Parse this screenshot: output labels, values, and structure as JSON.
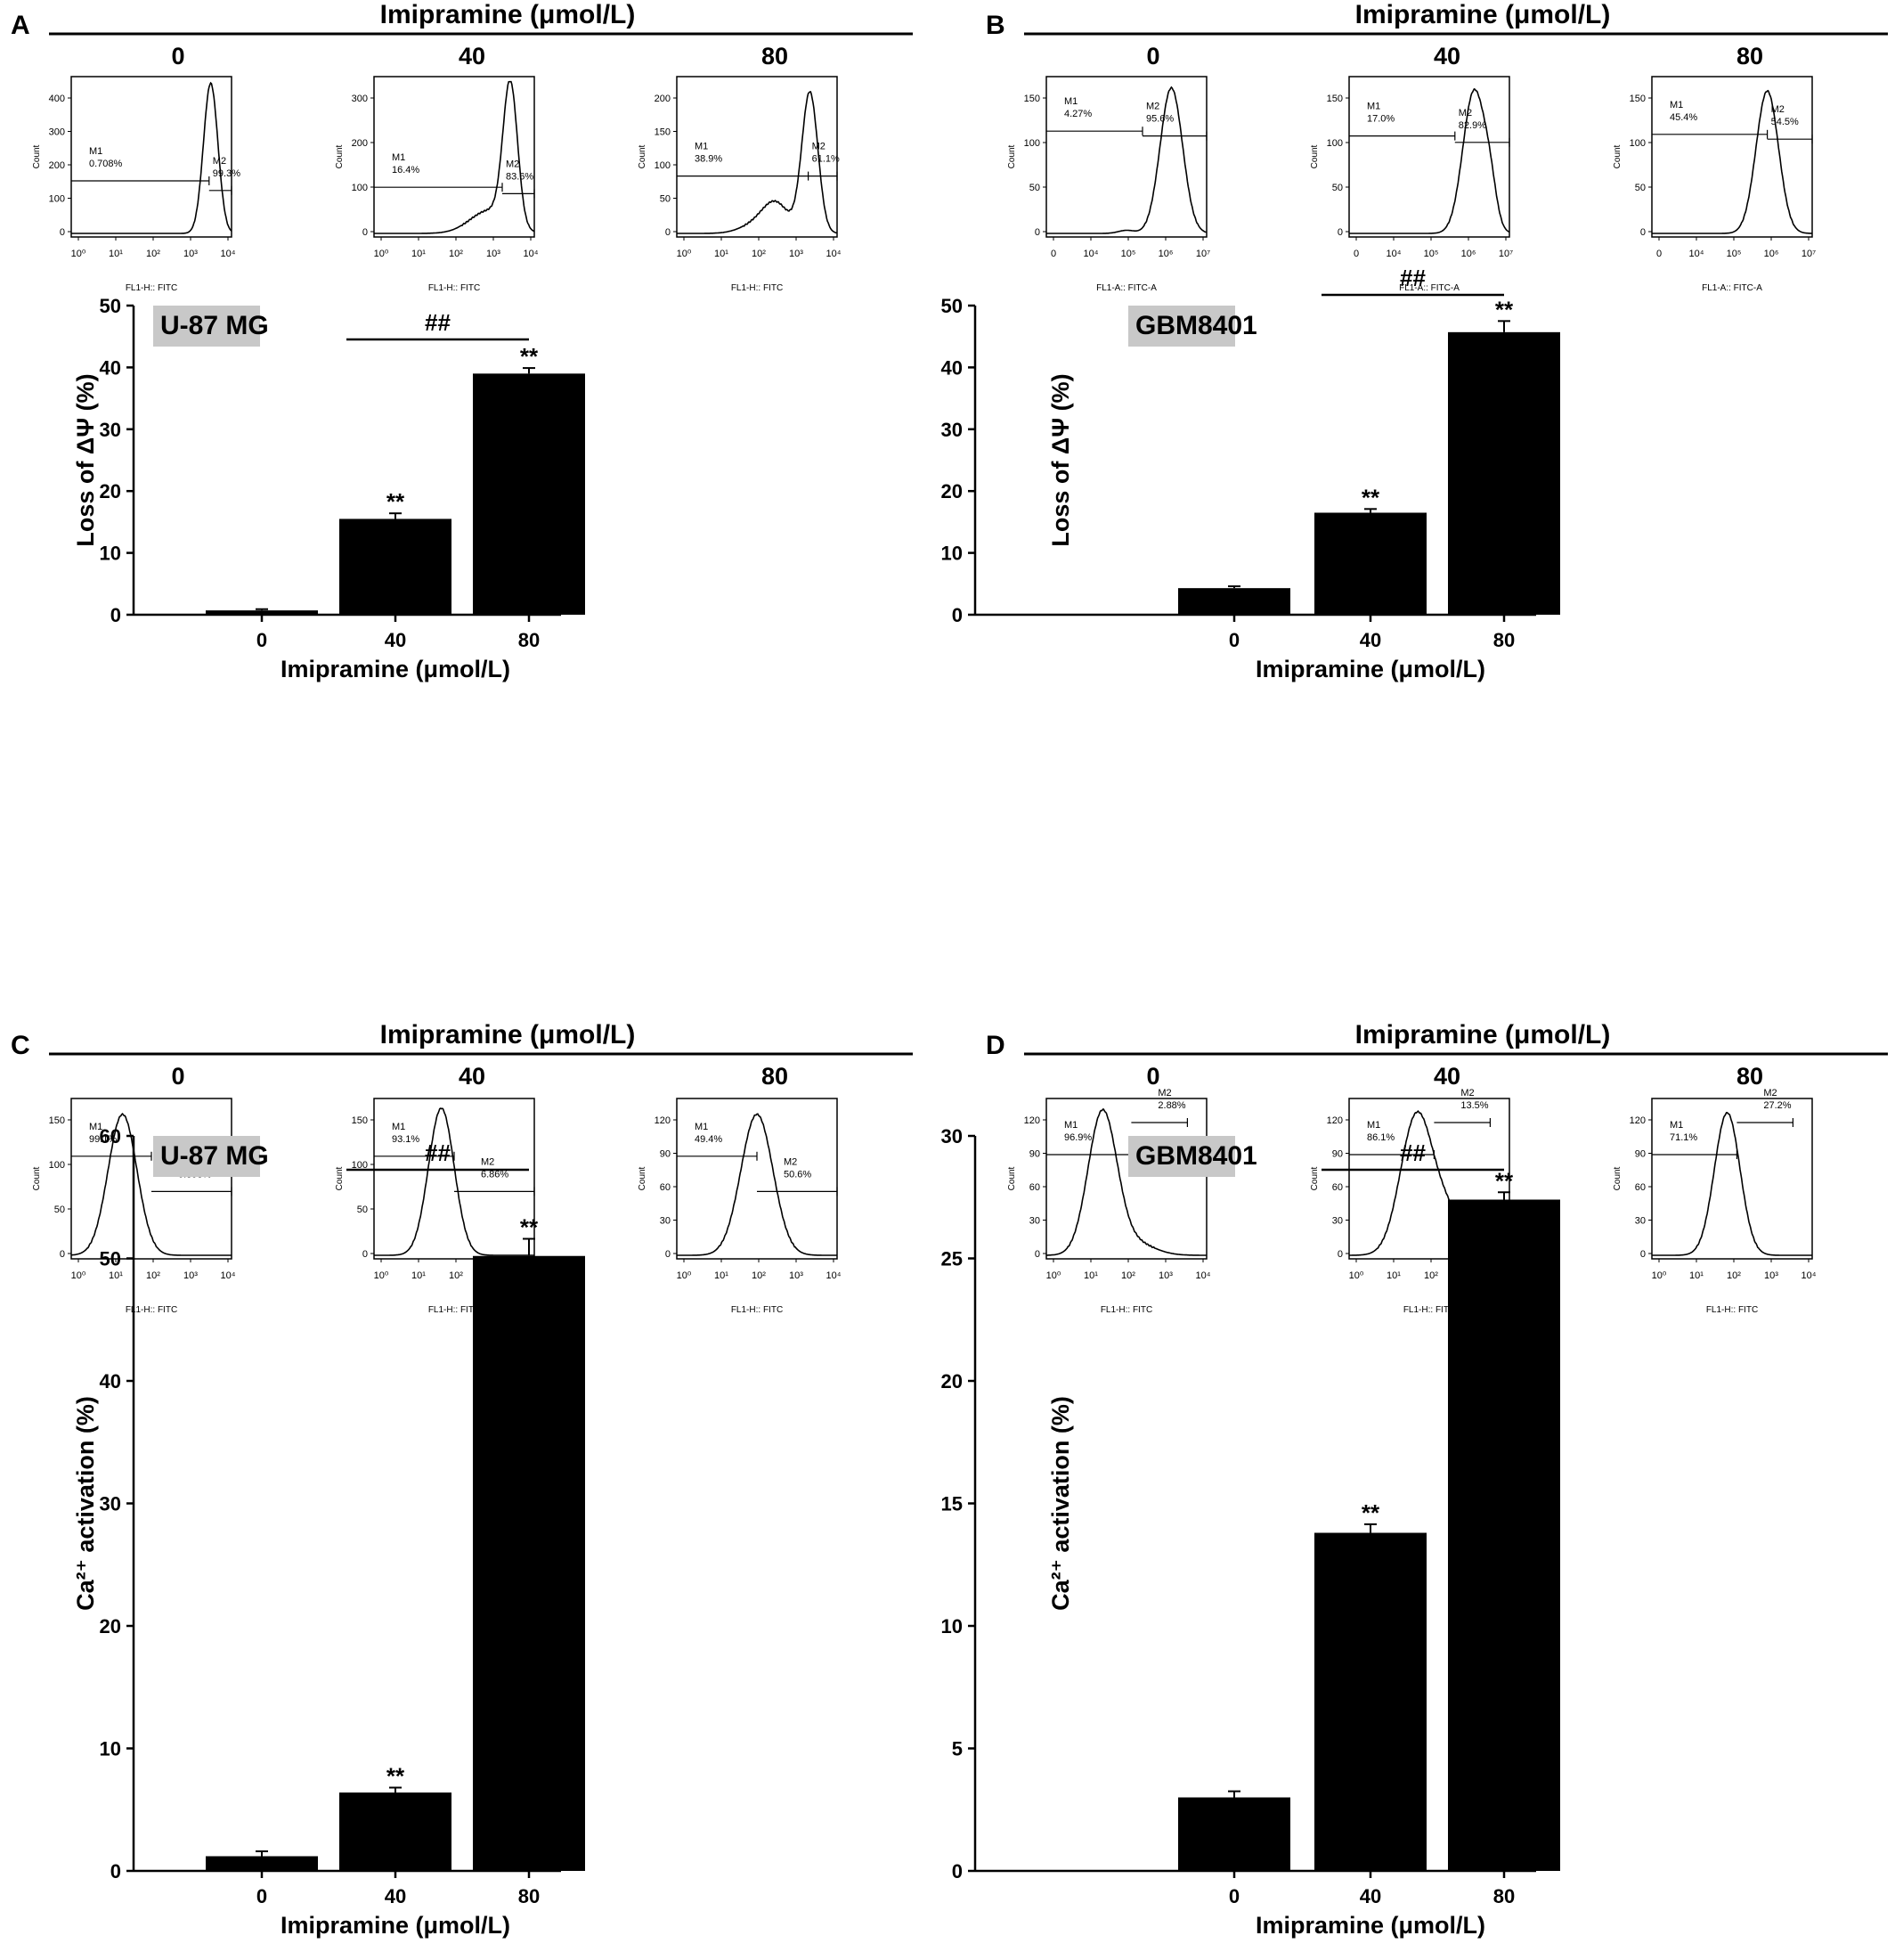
{
  "panels": [
    {
      "letter": "A",
      "header": "Imipramine (μmol/L)",
      "doses": [
        "0",
        "40",
        "80"
      ],
      "flow": {
        "yticks": [
          [
            "0",
            "100",
            "200",
            "300",
            "400"
          ],
          [
            "0",
            "100",
            "200",
            "300"
          ],
          [
            "0",
            "50",
            "100",
            "150",
            "200"
          ]
        ],
        "ylabel": "Count",
        "xlabel": "FL1-H:: FITC",
        "xscale": "log",
        "xticks": [
          "10⁰",
          "10¹",
          "10²",
          "10³",
          "10⁴"
        ],
        "gates": [
          [
            {
              "name": "M1",
              "value": "0.708%"
            },
            {
              "name": "M2",
              "value": "99.3%"
            }
          ],
          [
            {
              "name": "M1",
              "value": "16.4%"
            },
            {
              "name": "M2",
              "value": "83.6%"
            }
          ],
          [
            {
              "name": "M1",
              "value": "38.9%"
            },
            {
              "name": "M2",
              "value": "61.1%"
            }
          ]
        ]
      },
      "cell_line": "U-87 MG",
      "bar": {
        "ylabel": "Loss of ΔΨ (%)",
        "xlabel": "Imipramine (μmol/L)",
        "sig_between": "##",
        "sig_bar": [
          "",
          "**",
          "**"
        ]
      }
    },
    {
      "letter": "B",
      "header": "Imipramine (μmol/L)",
      "doses": [
        "0",
        "40",
        "80"
      ],
      "flow": {
        "yticks": [
          [
            "0",
            "50",
            "100",
            "150"
          ],
          [
            "0",
            "50",
            "100",
            "150"
          ],
          [
            "0",
            "50",
            "100",
            "150"
          ]
        ],
        "ylabel": "Count",
        "xlabel": "FL1-A:: FITC-A",
        "xscale": "biexponential",
        "xticks": [
          "0",
          "10⁴",
          "10⁵",
          "10⁶",
          "10⁷"
        ],
        "gates": [
          [
            {
              "name": "M1",
              "value": "4.27%"
            },
            {
              "name": "M2",
              "value": "95.6%"
            }
          ],
          [
            {
              "name": "M1",
              "value": "17.0%"
            },
            {
              "name": "M2",
              "value": "82.9%"
            }
          ],
          [
            {
              "name": "M1",
              "value": "45.4%"
            },
            {
              "name": "M2",
              "value": "54.5%"
            }
          ]
        ]
      },
      "cell_line": "GBM8401",
      "bar": {
        "ylabel": "Loss of ΔΨ (%)",
        "xlabel": "Imipramine (μmol/L)",
        "sig_between": "##",
        "sig_bar": [
          "",
          "**",
          "**"
        ]
      }
    },
    {
      "letter": "C",
      "header": "Imipramine (μmol/L)",
      "doses": [
        "0",
        "40",
        "80"
      ],
      "flow": {
        "yticks": [
          [
            "0",
            "50",
            "100",
            "150"
          ],
          [
            "0",
            "50",
            "100",
            "150"
          ],
          [
            "0",
            "30",
            "60",
            "90",
            "120"
          ]
        ],
        "ylabel": "Count",
        "xlabel": "FL1-H:: FITC",
        "xscale": "log",
        "xticks": [
          "10⁰",
          "10¹",
          "10²",
          "10³",
          "10⁴"
        ],
        "gates": [
          [
            {
              "name": "M1",
              "value": "99.1%"
            },
            {
              "name": "M2",
              "value": "0.898%"
            }
          ],
          [
            {
              "name": "M1",
              "value": "93.1%"
            },
            {
              "name": "M2",
              "value": "6.86%"
            }
          ],
          [
            {
              "name": "M1",
              "value": "49.4%"
            },
            {
              "name": "M2",
              "value": "50.6%"
            }
          ]
        ]
      },
      "cell_line": "U-87 MG",
      "bar": {
        "ylabel": "Ca²⁺ activation (%)",
        "xlabel": "Imipramine (μmol/L)",
        "sig_between": "##",
        "sig_bar": [
          "",
          "**",
          "**"
        ]
      }
    },
    {
      "letter": "D",
      "header": "Imipramine (μmol/L)",
      "doses": [
        "0",
        "40",
        "80"
      ],
      "flow": {
        "yticks": [
          [
            "0",
            "30",
            "60",
            "90",
            "120"
          ],
          [
            "0",
            "30",
            "60",
            "90",
            "120"
          ],
          [
            "0",
            "30",
            "60",
            "90",
            "120"
          ]
        ],
        "ylabel": "Count",
        "xlabel": "FL1-H:: FITC",
        "xscale": "log",
        "xticks": [
          "10⁰",
          "10¹",
          "10²",
          "10³",
          "10⁴"
        ],
        "gates": [
          [
            {
              "name": "M1",
              "value": "96.9%"
            },
            {
              "name": "M2",
              "value": "2.88%"
            }
          ],
          [
            {
              "name": "M1",
              "value": "86.1%"
            },
            {
              "name": "M2",
              "value": "13.5%"
            }
          ],
          [
            {
              "name": "M1",
              "value": "71.1%"
            },
            {
              "name": "M2",
              "value": "27.2%"
            }
          ]
        ]
      },
      "cell_line": "GBM8401",
      "bar": {
        "ylabel": "Ca²⁺ activation (%)",
        "xlabel": "Imipramine (μmol/L)",
        "sig_between": "##",
        "sig_bar": [
          "",
          "**",
          "**"
        ]
      }
    }
  ],
  "chart_data": [
    {
      "panel": "A",
      "type": "bar",
      "categories": [
        "0",
        "40",
        "80"
      ],
      "values": [
        0.7,
        15.5,
        39.0
      ],
      "errors": [
        0.2,
        0.9,
        0.9
      ],
      "ylim": [
        0,
        50
      ],
      "yticks": [
        0,
        10,
        20,
        30,
        40,
        50
      ],
      "ylabel": "Loss of ΔΨ (%)",
      "xlabel": "Imipramine (μmol/L)",
      "annotation": "U-87 MG"
    },
    {
      "panel": "B",
      "type": "bar",
      "categories": [
        "0",
        "40",
        "80"
      ],
      "values": [
        4.3,
        16.5,
        45.7
      ],
      "errors": [
        0.3,
        0.6,
        1.8
      ],
      "ylim": [
        0,
        50
      ],
      "yticks": [
        0,
        10,
        20,
        30,
        40,
        50
      ],
      "ylabel": "Loss of ΔΨ (%)",
      "xlabel": "Imipramine (μmol/L)",
      "annotation": "GBM8401"
    },
    {
      "panel": "C",
      "type": "bar",
      "categories": [
        "0",
        "40",
        "80"
      ],
      "values": [
        1.2,
        6.4,
        50.2
      ],
      "errors": [
        0.4,
        0.4,
        1.4
      ],
      "ylim": [
        0,
        60
      ],
      "yticks": [
        0,
        10,
        20,
        30,
        40,
        50,
        60
      ],
      "ylabel": "Ca²⁺ activation (%)",
      "xlabel": "Imipramine (μmol/L)",
      "annotation": "U-87 MG"
    },
    {
      "panel": "D",
      "type": "bar",
      "categories": [
        "0",
        "40",
        "80"
      ],
      "values": [
        3.0,
        13.8,
        27.4
      ],
      "errors": [
        0.25,
        0.35,
        0.3
      ],
      "ylim": [
        0,
        30
      ],
      "yticks": [
        0,
        5,
        10,
        15,
        20,
        25,
        30
      ],
      "ylabel": "Ca²⁺ activation (%)",
      "xlabel": "Imipramine (μmol/L)",
      "annotation": "GBM8401"
    }
  ]
}
